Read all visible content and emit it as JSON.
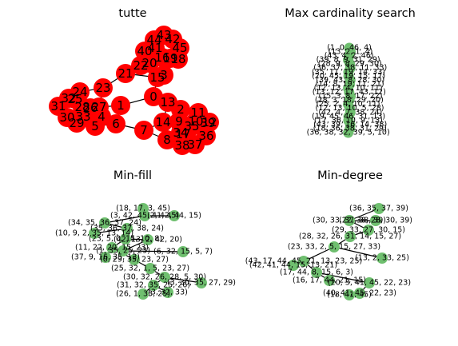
{
  "titles": {
    "p1": "tutte",
    "p2": "Max cardinality search",
    "p3": "Min-fill",
    "p4": "Min-degree"
  },
  "tutte_labels": [
    "0",
    "1",
    "2",
    "3",
    "4",
    "5",
    "6",
    "7",
    "8",
    "9",
    "10",
    "11",
    "12",
    "13",
    "14",
    "15",
    "16",
    "17",
    "18",
    "19",
    "20",
    "21",
    "22",
    "23",
    "24",
    "25",
    "26",
    "27",
    "28",
    "29",
    "30",
    "31",
    "32",
    "33",
    "34",
    "35",
    "36",
    "37",
    "38",
    "39",
    "40",
    "41",
    "42",
    "43",
    "44",
    "45"
  ],
  "maxcard_labels": [
    "(1, 0, 46, 4)",
    "(13, 2, 1, 4)",
    "(43, 4, 2, 46)",
    "(39, 8, 9, 31, 29)",
    "(28, 9, 8, 29, 30)",
    "(36, 37, 38, 11, 33)",
    "(35, 11, 19, 14, 33)",
    "(20, 45, 19, 15, 17)",
    "(39, 43, 8, 28, 30)",
    "(14, 8, 19, 11, 21)",
    "(12, 13, 4, 10, 11)",
    "(13, 12, 17, 43, 12)",
    "(15, 3, 8, 17, 22)",
    "(28, 3, 18, 29, 20)",
    "(25, 2, 4, 10, 11)",
    "(12, 13, 10, 5, 28)",
    "(42, 4, 7, 38, 24)",
    "(19, 45, 46, 31, 13)",
    "(17, 36, 10, 9, 13)",
    "(43, 39, 16, 14, 38)",
    "(18, 36, 38, 31, 29)",
    "(36, 38, 32, 39, 5, 10)"
  ],
  "minfill_labels": [
    "(18, 17, 3, 45)",
    "(3, 42, 45, 41, 45)",
    "(2, 42, 44, 15)",
    "(34, 35, 36, 37, 24)",
    "(35, 36, 37, 38, 24)",
    "(10, 9, 2, 35, 13, 14)",
    "(23, 5, 0, 15, 10, 8)",
    "(42, 13, 2, 42, 20)",
    "(11, 22, 20, 15, 23)",
    "(6, 32, 15, 5, 7)",
    "(37, 9, 16, 35, 13)",
    "(0, 29, 35, 23, 27)",
    "(1, 35, 25, 23)",
    "(25, 32, 1, 5, 23, 27)",
    "(30, 32, 26, 28, 5, 30)",
    "(3, 30, 35, 27, 29)",
    "(31, 32, 35, 25, 26)",
    "(3, 32, 33)",
    "(26, 1, 33, 25)"
  ],
  "mindeg_labels": [
    "(36, 35, 37, 39)",
    "(30, 33, 37, 38, 39)",
    "(22, 38, 28, 30, 39)",
    "(29, 33, 27, 30, 15)",
    "(28, 32, 26, 31, 14, 15, 27)",
    "(23, 33, 2, 5, 15, 27, 33)",
    "(13, 2, 33, 25)",
    "(43, 17, 44, 45, 21, 13, 23, 25)",
    "(42, 41, 44, 15, 13, 21)",
    "(17, 44, 8, 15, 6, 3)",
    "(16, 17, 44, 21, 15)",
    "(20, 3, 41, 45, 22, 23)",
    "(40, 41, 45, 22, 23)",
    "(18, 41, 45)"
  ]
}
